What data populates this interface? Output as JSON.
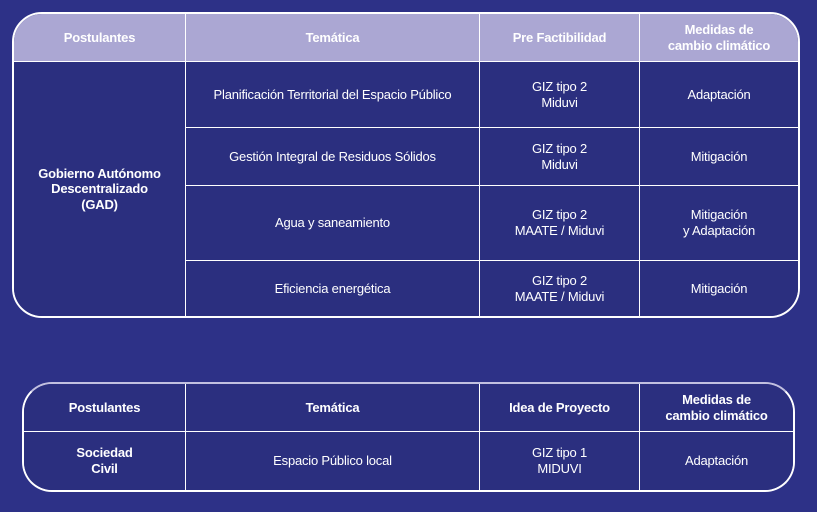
{
  "colors": {
    "page_background": "#2d3187",
    "cell_background": "#2b2f7f",
    "header_background": "#aba7d3",
    "border": "#ffffff",
    "text": "#ffffff"
  },
  "table_gad": {
    "headers": {
      "postulantes": "Postulantes",
      "tematica": "Temática",
      "pre_factibilidad": "Pre Factibilidad",
      "medidas": "Medidas de\ncambio climático"
    },
    "postulante": "Gobierno Autónomo\nDescentralizado\n(GAD)",
    "rows": [
      {
        "tematica": "Planificación Territorial del Espacio Público",
        "pre_factibilidad": "GIZ tipo 2\nMiduvi",
        "medidas": "Adaptación"
      },
      {
        "tematica": "Gestión Integral de Residuos Sólidos",
        "pre_factibilidad": "GIZ tipo 2\nMiduvi",
        "medidas": "Mitigación"
      },
      {
        "tematica": "Agua y saneamiento",
        "pre_factibilidad": "GIZ tipo 2\nMAATE / Miduvi",
        "medidas": "Mitigación\ny Adaptación"
      },
      {
        "tematica": "Eficiencia energética",
        "pre_factibilidad": "GIZ tipo 2\nMAATE / Miduvi",
        "medidas": "Mitigación"
      }
    ]
  },
  "table_sociedad": {
    "headers": {
      "postulantes": "Postulantes",
      "tematica": "Temática",
      "idea_proyecto": "Idea de Proyecto",
      "medidas": "Medidas de\ncambio climático"
    },
    "postulante": "Sociedad\nCivil",
    "rows": [
      {
        "tematica": "Espacio Público local",
        "idea_proyecto": "GIZ tipo 1\nMIDUVI",
        "medidas": "Adaptación"
      }
    ]
  }
}
